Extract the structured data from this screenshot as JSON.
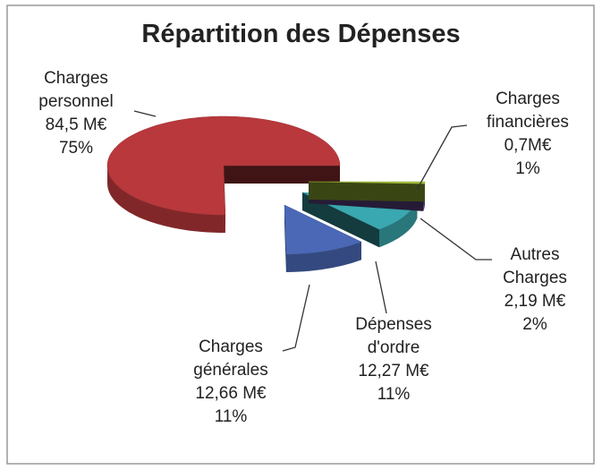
{
  "chart_data": {
    "type": "pie",
    "title": "Répartition des Dépenses",
    "categories": [
      "Charges personnel",
      "Charges générales",
      "Dépenses d'ordre",
      "Autres Charges",
      "Charges financières"
    ],
    "values": [
      84.5,
      12.66,
      12.27,
      2.19,
      0.7
    ],
    "value_labels": [
      "84,5 M€",
      "12,66 M€",
      "12,27 M€",
      "2,19 M€",
      "0,7M€"
    ],
    "percentages": [
      75,
      11,
      11,
      2,
      1
    ],
    "percentage_labels": [
      "75%",
      "11%",
      "11%",
      "2%",
      "1%"
    ],
    "colors": [
      "#b8383c",
      "#4a68b6",
      "#3aa8b0",
      "#6a4c9e",
      "#a6c43a"
    ]
  }
}
